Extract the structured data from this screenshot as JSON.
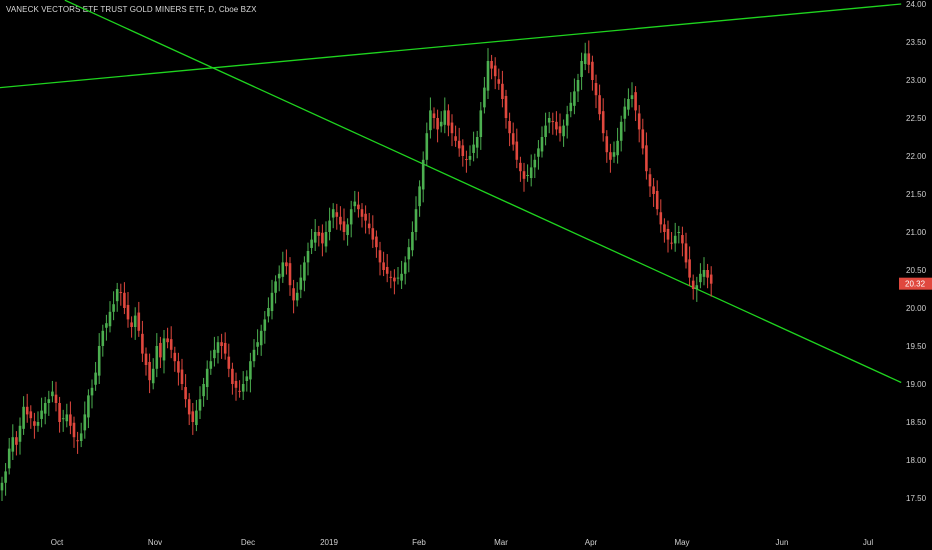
{
  "header": {
    "title": "VANECK VECTORS ETF TRUST GOLD MINERS ETF, D, Cboe BZX"
  },
  "chart_data": {
    "type": "candlestick",
    "ylim": [
      17.25,
      24.0
    ],
    "y_ticks": [
      "24.00",
      "23.50",
      "23.00",
      "22.50",
      "22.00",
      "21.50",
      "21.00",
      "20.50",
      "20.00",
      "19.50",
      "19.00",
      "18.50",
      "18.00",
      "17.50"
    ],
    "x_ticks": [
      "Oct",
      "Nov",
      "Dec",
      "2019",
      "Feb",
      "Mar",
      "Apr",
      "May",
      "Jun",
      "Jul"
    ],
    "last_price": "20.32",
    "colors": {
      "up": "#4caf50",
      "down": "#e0483e",
      "trendline": "#1fd41f",
      "price_tag": "#e0483e",
      "background": "#000000"
    },
    "trendlines": [
      {
        "name": "upper-resistance",
        "from": {
          "day": 0,
          "price": 22.9
        },
        "to": {
          "day": 192,
          "price": 24.0
        }
      },
      {
        "name": "descending-support",
        "from": {
          "day": 18,
          "price": 24.05
        },
        "to": {
          "day": 192,
          "price": 19.02
        }
      }
    ],
    "close": [
      17.7,
      17.85,
      18.15,
      18.3,
      18.2,
      18.45,
      18.7,
      18.6,
      18.55,
      18.45,
      18.5,
      18.65,
      18.75,
      18.8,
      18.9,
      18.75,
      18.5,
      18.55,
      18.6,
      18.45,
      18.3,
      18.25,
      18.35,
      18.6,
      18.85,
      18.95,
      19.15,
      19.5,
      19.7,
      19.8,
      19.95,
      20.05,
      20.25,
      20.2,
      20.0,
      19.85,
      19.75,
      19.9,
      19.7,
      19.4,
      19.25,
      19.05,
      19.2,
      19.5,
      19.35,
      19.6,
      19.55,
      19.45,
      19.3,
      19.15,
      19.0,
      18.8,
      18.6,
      18.5,
      18.65,
      18.8,
      19.0,
      19.2,
      19.3,
      19.45,
      19.55,
      19.5,
      19.4,
      19.2,
      19.0,
      18.95,
      18.9,
      19.0,
      19.1,
      19.3,
      19.45,
      19.55,
      19.7,
      19.85,
      20.0,
      20.2,
      20.35,
      20.45,
      20.6,
      20.55,
      20.3,
      20.1,
      20.2,
      20.4,
      20.6,
      20.75,
      20.9,
      21.0,
      20.95,
      20.85,
      21.0,
      21.15,
      21.3,
      21.2,
      21.1,
      21.0,
      21.1,
      21.3,
      21.4,
      21.3,
      21.2,
      21.15,
      21.05,
      20.9,
      20.8,
      20.6,
      20.5,
      20.45,
      20.4,
      20.35,
      20.4,
      20.45,
      20.6,
      20.8,
      21.0,
      21.3,
      21.6,
      21.95,
      22.3,
      22.6,
      22.5,
      22.35,
      22.45,
      22.6,
      22.4,
      22.3,
      22.2,
      22.1,
      22.0,
      21.95,
      22.0,
      22.15,
      22.25,
      22.6,
      22.9,
      23.25,
      23.15,
      23.05,
      22.95,
      22.75,
      22.5,
      22.3,
      22.15,
      21.95,
      21.8,
      21.7,
      21.75,
      21.85,
      21.95,
      22.1,
      22.25,
      22.4,
      22.5,
      22.45,
      22.35,
      22.3,
      22.4,
      22.55,
      22.7,
      22.85,
      23.0,
      23.25,
      23.35,
      23.2,
      23.0,
      22.8,
      22.55,
      22.3,
      22.05,
      21.95,
      22.05,
      22.2,
      22.45,
      22.65,
      22.75,
      22.8,
      22.6,
      22.35,
      22.1,
      21.8,
      21.6,
      21.5,
      21.3,
      21.1,
      21.0,
      20.9,
      20.85,
      20.95,
      21.0,
      20.85,
      20.6,
      20.4,
      20.25,
      20.3,
      20.45,
      20.5,
      20.4,
      20.32
    ]
  }
}
